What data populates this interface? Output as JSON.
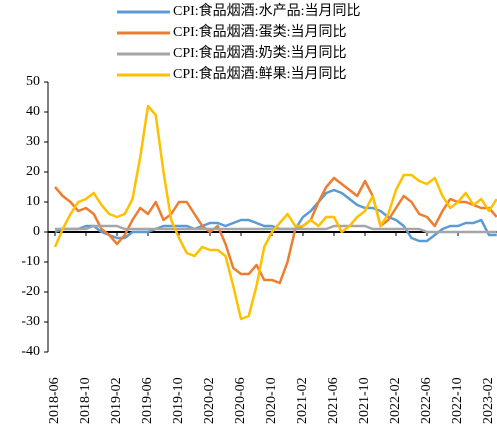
{
  "chart_data": {
    "type": "line",
    "categories": [
      "2018-06",
      null,
      null,
      null,
      "2018-10",
      null,
      null,
      null,
      "2019-02",
      null,
      null,
      null,
      "2019-06",
      null,
      null,
      null,
      "2019-10",
      null,
      null,
      null,
      "2020-02",
      null,
      null,
      null,
      "2020-06",
      null,
      null,
      null,
      "2020-10",
      null,
      null,
      null,
      "2021-02",
      null,
      null,
      null,
      "2021-06",
      null,
      null,
      null,
      "2021-10",
      null,
      null,
      null,
      "2022-02",
      null,
      null,
      null,
      "2022-06",
      null,
      null,
      null,
      "2022-10",
      null,
      null,
      null,
      "2023-02",
      null
    ],
    "series": [
      {
        "name": "CPI:食品烟酒:水产品:当月同比",
        "color": "#5b9bd5",
        "values": [
          0,
          1,
          1,
          1,
          2,
          2,
          0,
          -1,
          -2,
          -2,
          0,
          0,
          0,
          1,
          2,
          2,
          2,
          2,
          1,
          2,
          3,
          3,
          2,
          3,
          4,
          4,
          3,
          2,
          2,
          1,
          1,
          1,
          5,
          7,
          10,
          13,
          14,
          13,
          11,
          9,
          8,
          8,
          7,
          5,
          4,
          2,
          -2,
          -3,
          -3,
          -1,
          1,
          2,
          2,
          3,
          3,
          4,
          -1,
          -1
        ]
      },
      {
        "name": "CPI:食品烟酒:蛋类:当月同比",
        "color": "#ed7d31",
        "values": [
          15,
          12,
          10,
          7,
          8,
          6,
          1,
          -1,
          -4,
          -1,
          4,
          8,
          6,
          10,
          4,
          6,
          10,
          10,
          6,
          2,
          0,
          2,
          -4,
          -12,
          -14,
          -14,
          -11,
          -16,
          -16,
          -17,
          -10,
          1,
          2,
          4,
          10,
          15,
          18,
          16,
          14,
          12,
          17,
          12,
          2,
          4,
          8,
          12,
          10,
          6,
          5,
          2,
          7,
          11,
          10,
          10,
          9,
          8,
          8,
          5
        ]
      },
      {
        "name": "CPI:食品烟酒:奶类:当月同比",
        "color": "#a5a5a5",
        "values": [
          1,
          1,
          1,
          1,
          1,
          2,
          2,
          2,
          2,
          1,
          1,
          1,
          1,
          1,
          1,
          1,
          1,
          1,
          1,
          1,
          1,
          1,
          1,
          1,
          1,
          1,
          1,
          1,
          1,
          1,
          1,
          1,
          1,
          1,
          1,
          1,
          2,
          2,
          2,
          2,
          2,
          1,
          1,
          1,
          1,
          1,
          1,
          1,
          0,
          0,
          0,
          0,
          0,
          0,
          0,
          0,
          0,
          0
        ]
      },
      {
        "name": "CPI:食品烟酒:鲜果:当月同比",
        "color": "#ffc000",
        "values": [
          -5,
          1,
          6,
          10,
          11,
          13,
          9,
          6,
          5,
          6,
          11,
          25,
          42,
          39,
          20,
          4,
          -2,
          -7,
          -8,
          -5,
          -6,
          -6,
          -8,
          -18,
          -29,
          -28,
          -18,
          -5,
          0,
          3,
          6,
          2,
          2,
          4,
          2,
          5,
          5,
          0,
          2,
          5,
          7,
          12,
          2,
          6,
          14,
          19,
          19,
          17,
          16,
          18,
          12,
          8,
          10,
          13,
          9,
          11,
          7,
          11
        ]
      }
    ],
    "ylim": [
      -40,
      50
    ],
    "yticks": [
      -40,
      -30,
      -20,
      -10,
      0,
      10,
      20,
      30,
      40,
      50
    ]
  }
}
